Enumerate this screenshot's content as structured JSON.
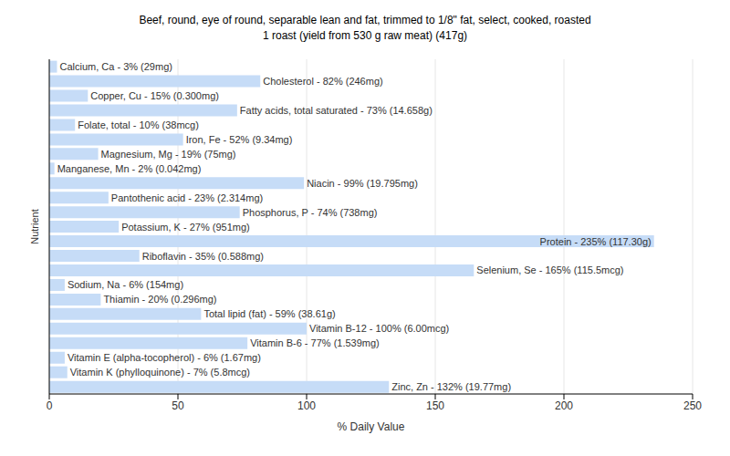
{
  "chart_data": {
    "type": "bar",
    "orientation": "horizontal",
    "title": "Beef, round, eye of round, separable lean and fat, trimmed to 1/8\" fat, select, cooked, roasted",
    "subtitle": "1 roast (yield from 530 g raw meat) (417g)",
    "x_label": "% Daily Value",
    "y_label": "Nutrient",
    "categories": [
      null,
      null,
      null,
      null,
      null,
      null,
      null,
      null,
      null,
      null,
      null,
      null,
      null,
      null,
      null,
      null,
      null,
      null,
      null,
      null,
      null,
      null,
      null
    ],
    "values": [
      3,
      82,
      15,
      73,
      10,
      52,
      19,
      2,
      99,
      23,
      74,
      27,
      235,
      35,
      165,
      6,
      20,
      59,
      100,
      77,
      6,
      7,
      132
    ],
    "value_labels": [
      "Calcium, Ca - 3% (29mg)",
      "Cholesterol - 82% (246mg)",
      "Copper, Cu - 15% (0.300mg)",
      "Fatty acids, total saturated - 73% (14.658g)",
      "Folate, total - 10% (38mcg)",
      "Iron, Fe - 52% (9.34mg)",
      "Magnesium, Mg - 19% (75mg)",
      "Manganese, Mn - 2% (0.042mg)",
      "Niacin - 99% (19.795mg)",
      "Pantothenic acid - 23% (2.314mg)",
      "Phosphorus, P - 74% (738mg)",
      "Potassium, K - 27% (951mg)",
      "Protein - 235% (117.30g)",
      "Riboflavin - 35% (0.588mg)",
      "Selenium, Se - 165% (115.5mcg)",
      "Sodium, Na - 6% (154mg)",
      "Thiamin - 20% (0.296mg)",
      "Total lipid (fat) - 59% (38.61g)",
      "Vitamin B-12 - 100% (6.00mcg)",
      "Vitamin B-6 - 77% (1.539mg)",
      "Vitamin E (alpha-tocopherol) - 6% (1.67mg)",
      "Vitamin K (phylloquinone) - 7% (5.8mcg)",
      "Zinc, Zn - 132% (19.77mg)"
    ],
    "data_labels": true,
    "color": "#c6dcf7",
    "xlim": [
      0,
      250
    ],
    "xticks": [
      0,
      50,
      100,
      150,
      200,
      250
    ],
    "grid": true,
    "tick_labels": "x"
  }
}
